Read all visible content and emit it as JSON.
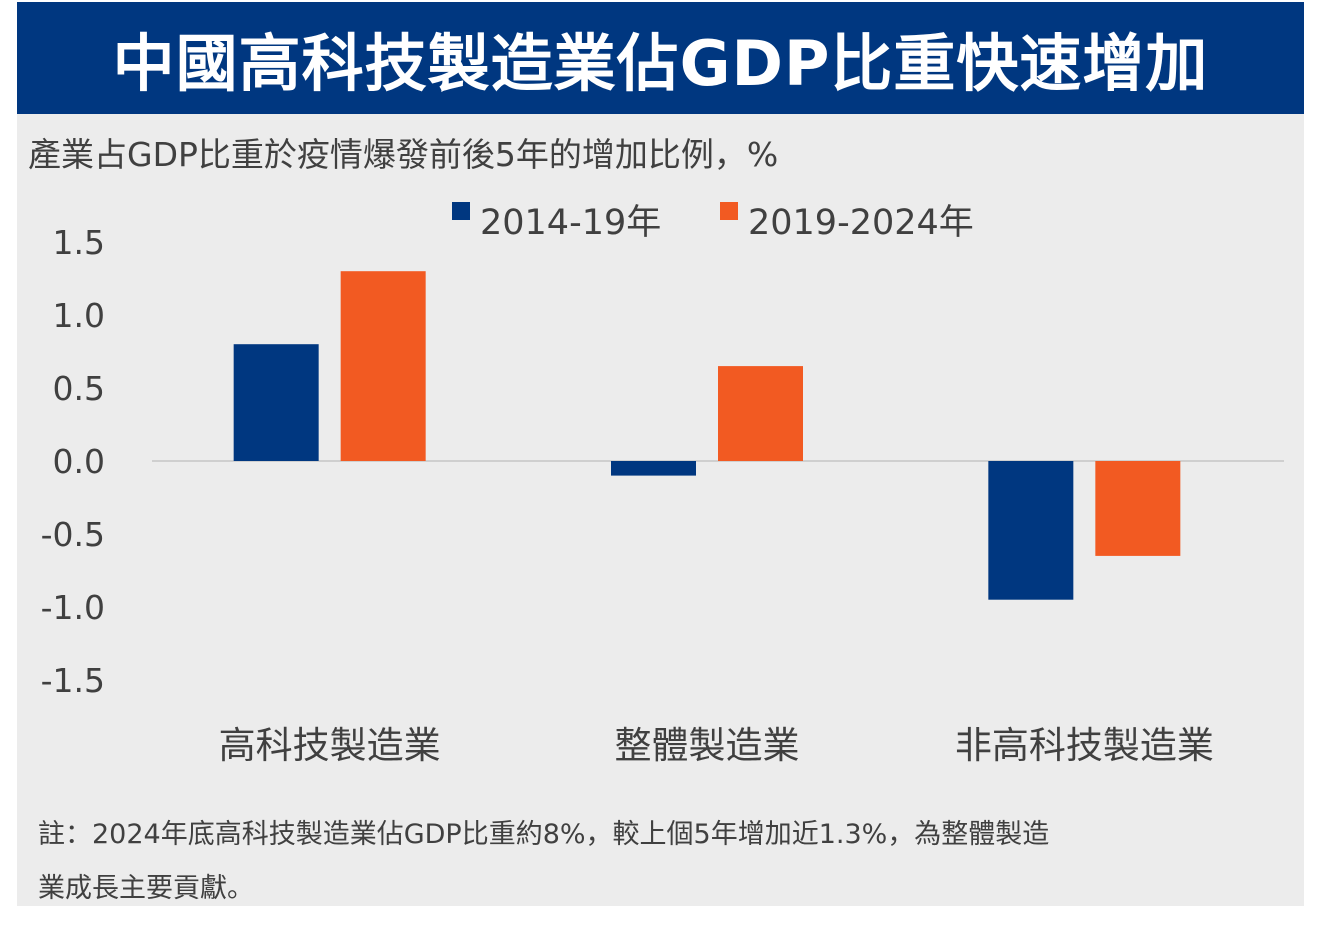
{
  "header": {
    "title": "中國高科技製造業佔GDP比重快速增加",
    "subtitle": "產業占GDP比重於疫情爆發前後5年的增加比例，%"
  },
  "colors": {
    "title_bg": "#003780",
    "series_1": "#003780",
    "series_2": "#f25a22",
    "panel_bg": "#ececec"
  },
  "chart_data": {
    "type": "bar",
    "categories": [
      "高科技製造業",
      "整體製造業",
      "非高科技製造業"
    ],
    "series": [
      {
        "name": "2014-19年",
        "values": [
          0.8,
          -0.1,
          -0.95
        ]
      },
      {
        "name": "2019-2024年",
        "values": [
          1.3,
          0.65,
          -0.65
        ]
      }
    ],
    "ylim": [
      -1.5,
      1.5
    ],
    "yticks": [
      "1.5",
      "1.0",
      "0.5",
      "0.0",
      "-0.5",
      "-1.0",
      "-1.5"
    ],
    "legend_position": "top-center",
    "grid": false
  },
  "note": {
    "line1": "註：2024年底高科技製造業佔GDP比重約8%，較上個5年增加近1.3%，為整體製造",
    "line2": "業成長主要貢獻。"
  }
}
